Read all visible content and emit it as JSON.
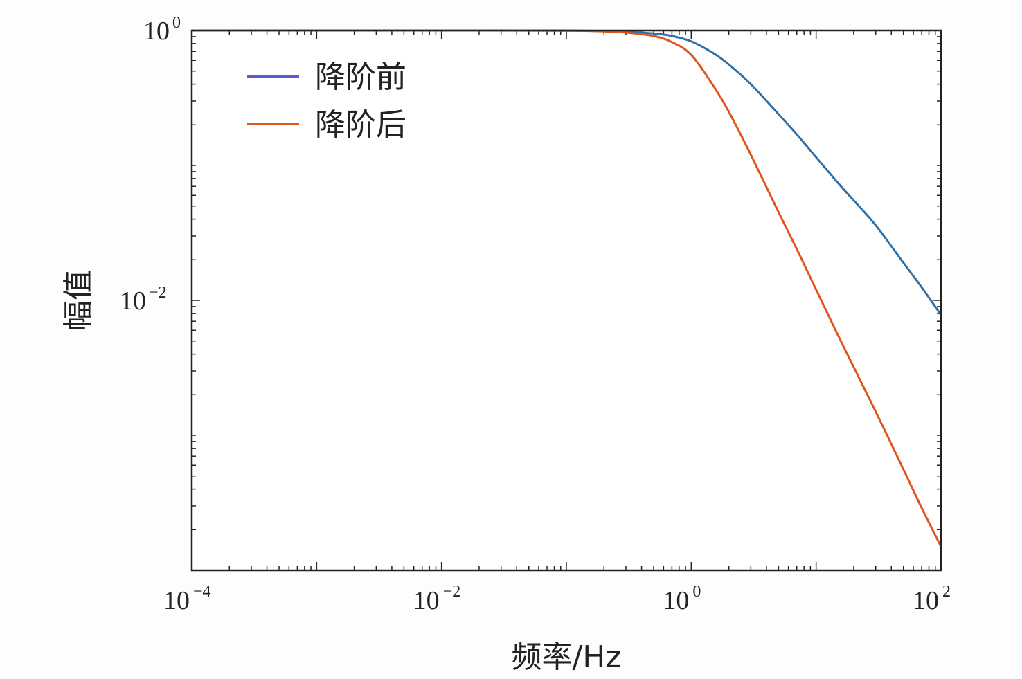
{
  "chart_data": {
    "type": "line",
    "title": "",
    "xlabel": "频率/Hz",
    "ylabel": "幅值",
    "xscale": "log",
    "yscale": "log",
    "xlim": [
      0.0001,
      100
    ],
    "ylim": [
      0.0001,
      1
    ],
    "x_ticks": [
      {
        "base": "10",
        "exp": "−4",
        "value": 0.0001
      },
      {
        "base": "10",
        "exp": "−2",
        "value": 0.01
      },
      {
        "base": "10",
        "exp": "0",
        "value": 1
      },
      {
        "base": "10",
        "exp": "2",
        "value": 100
      }
    ],
    "y_ticks": [
      {
        "base": "10",
        "exp": "0",
        "value": 1
      },
      {
        "base": "10",
        "exp": "−2",
        "value": 0.01
      }
    ],
    "grid": false,
    "legend_position": "top-left",
    "series": [
      {
        "name": "降阶前",
        "color": "#2f6fa8",
        "legend_color": "#5b5bd6",
        "x": [
          0.0001,
          0.001,
          0.01,
          0.1,
          0.2,
          0.3,
          0.5,
          0.7,
          1,
          1.5,
          2,
          3,
          5,
          7,
          10,
          15,
          20,
          30,
          50,
          70,
          100
        ],
        "y": [
          1,
          1,
          1,
          0.999,
          0.99,
          0.98,
          0.95,
          0.91,
          0.83,
          0.68,
          0.56,
          0.4,
          0.24,
          0.17,
          0.115,
          0.074,
          0.055,
          0.036,
          0.019,
          0.0125,
          0.0078
        ]
      },
      {
        "name": "降阶后",
        "color": "#e0531d",
        "legend_color": "#e0531d",
        "x": [
          0.0001,
          0.001,
          0.01,
          0.1,
          0.2,
          0.3,
          0.5,
          0.7,
          1,
          1.5,
          2,
          3,
          5,
          7,
          10,
          15,
          20,
          30,
          50,
          70,
          100
        ],
        "y": [
          1,
          1,
          1,
          0.998,
          0.985,
          0.965,
          0.91,
          0.82,
          0.66,
          0.39,
          0.25,
          0.12,
          0.045,
          0.024,
          0.012,
          0.0055,
          0.0032,
          0.0015,
          0.00056,
          0.00029,
          0.00015
        ]
      }
    ]
  }
}
